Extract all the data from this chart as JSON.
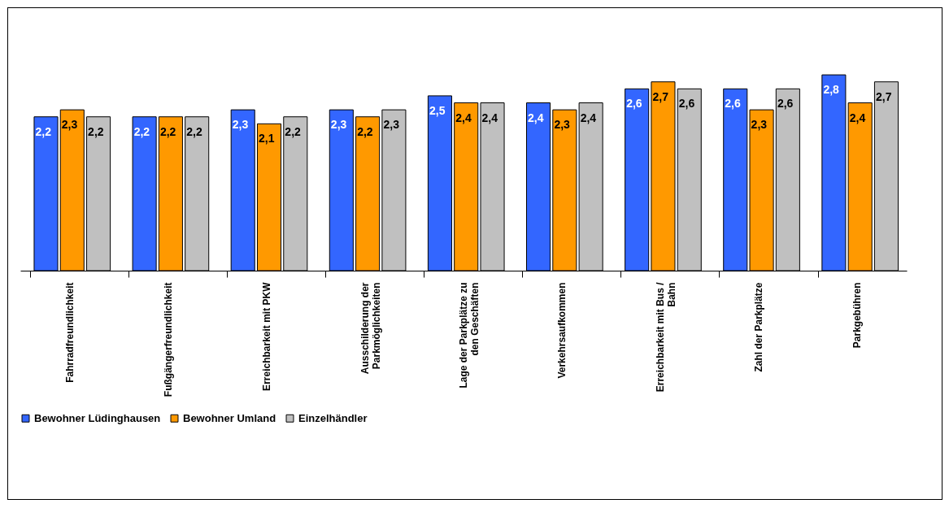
{
  "chart_data": {
    "type": "bar",
    "categories": [
      "Fahrradfreundlichkeit",
      "Fußgängerfreundlichkeit",
      "Erreichbarkeit mit PKW",
      "Ausschilderung der Parkmöglichkeiten",
      "Lage der Parkplätze zu den Geschäften",
      "Verkehrsaufkommen",
      "Erreichbarkeit mit Bus / Bahn",
      "Zahl der Parkplätze",
      "Parkgebühren"
    ],
    "series": [
      {
        "name": "Bewohner Lüdinghausen",
        "color": "#3366ff",
        "values": [
          2.2,
          2.2,
          2.3,
          2.3,
          2.5,
          2.4,
          2.6,
          2.6,
          2.8
        ],
        "value_labels": [
          "2,2",
          "2,2",
          "2,3",
          "2,3",
          "2,5",
          "2,4",
          "2,6",
          "2,6",
          "2,8"
        ]
      },
      {
        "name": "Bewohner Umland",
        "color": "#ff9900",
        "values": [
          2.3,
          2.2,
          2.1,
          2.2,
          2.4,
          2.3,
          2.7,
          2.3,
          2.4
        ],
        "value_labels": [
          "2,3",
          "2,2",
          "2,1",
          "2,2",
          "2,4",
          "2,3",
          "2,7",
          "2,3",
          "2,4"
        ]
      },
      {
        "name": "Einzelhändler",
        "color": "#c0c0c0",
        "values": [
          2.2,
          2.2,
          2.2,
          2.3,
          2.4,
          2.4,
          2.6,
          2.6,
          2.7
        ],
        "value_labels": [
          "2,2",
          "2,2",
          "2,2",
          "2,3",
          "2,4",
          "2,4",
          "2,6",
          "2,6",
          "2,7"
        ]
      }
    ],
    "legend": "bottom"
  }
}
